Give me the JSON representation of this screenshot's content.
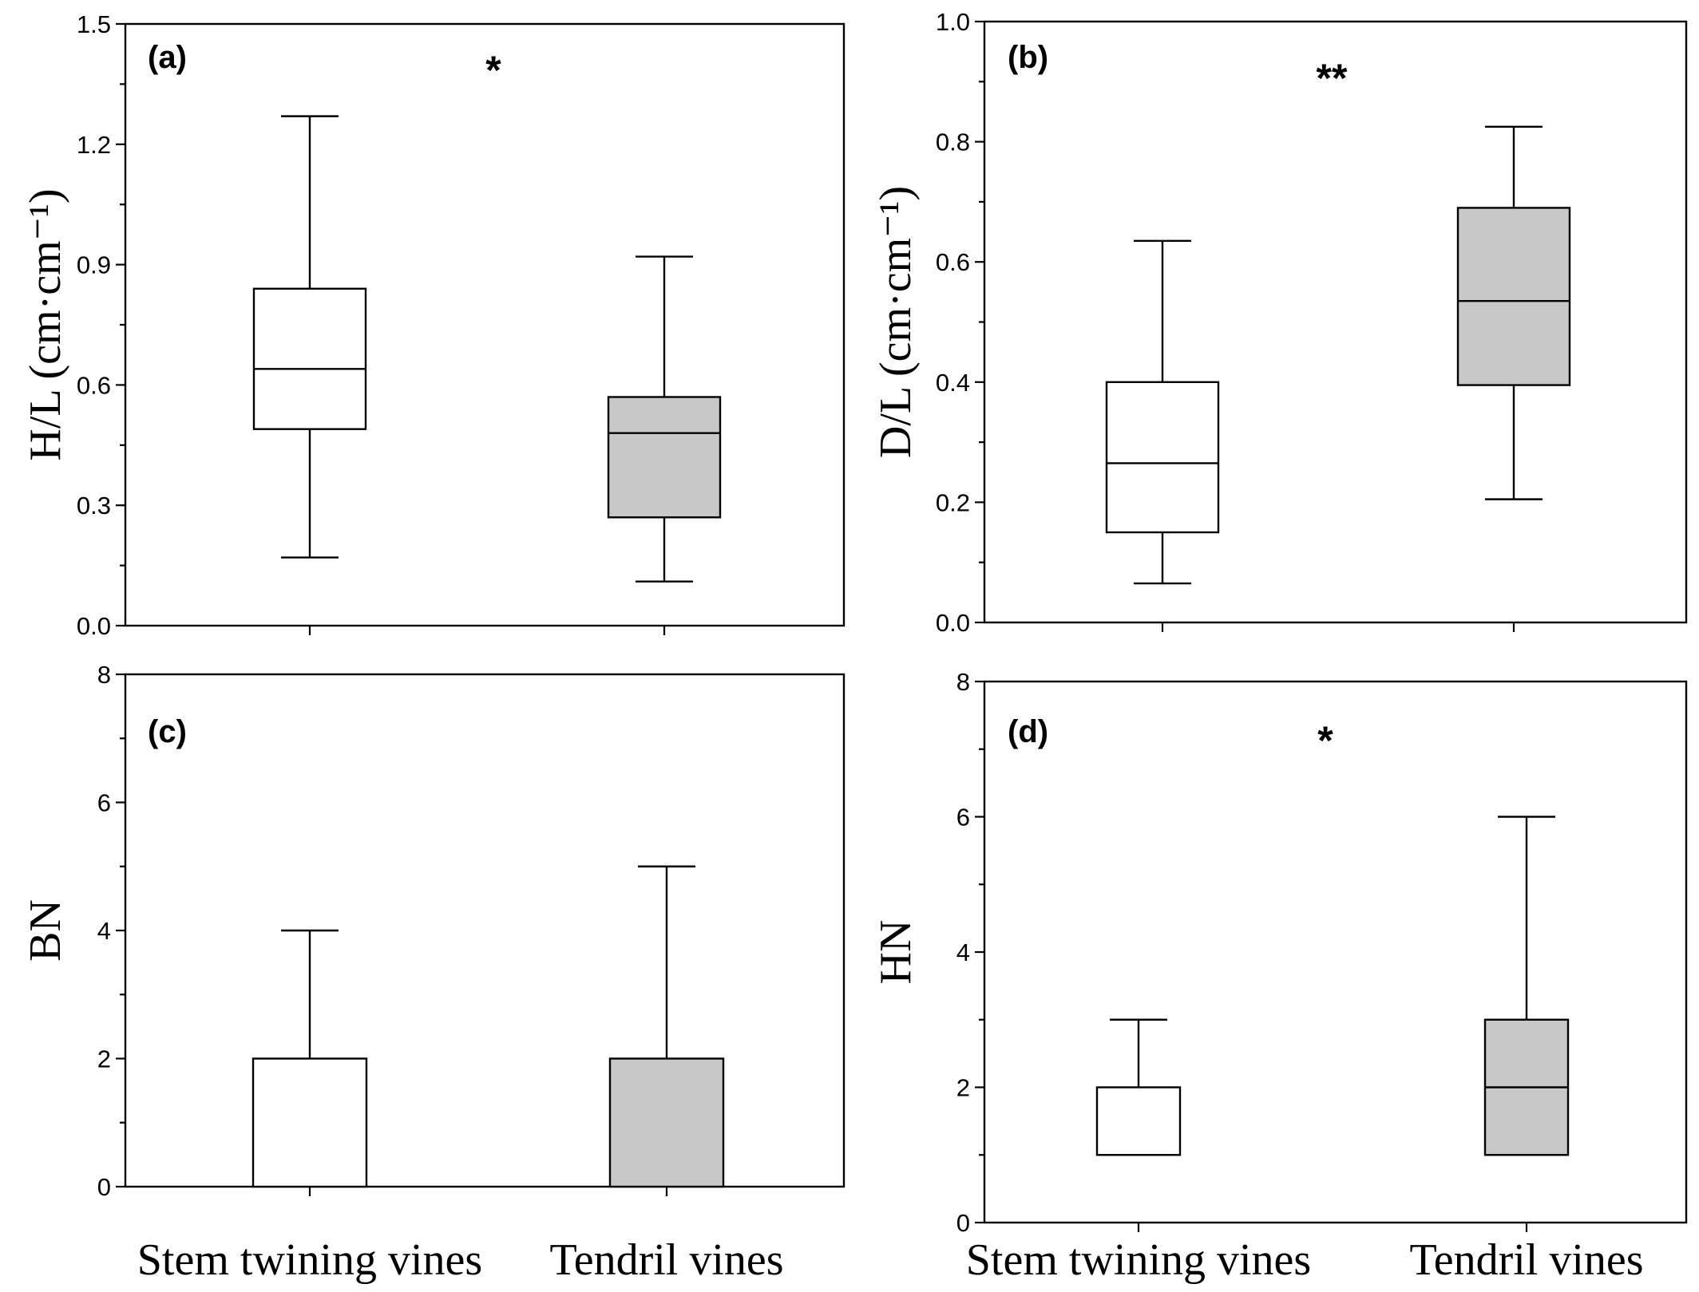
{
  "chart_data": [
    {
      "type": "box",
      "panel_label": "(a)",
      "significance": "*",
      "ylabel": "H/L (cm·cm⁻¹)",
      "ylim": [
        0,
        1.5
      ],
      "yticks": [
        0.0,
        0.3,
        0.6,
        0.9,
        1.2,
        1.5
      ],
      "ytick_labels": [
        "0.0",
        "0.3",
        "0.6",
        "0.9",
        "1.2",
        "1.5"
      ],
      "categories": [
        "Stem twining vines",
        "Tendril vines"
      ],
      "show_xlabels": false,
      "boxes": [
        {
          "category": "Stem twining vines",
          "min": 0.17,
          "q1": 0.49,
          "median": 0.64,
          "q3": 0.84,
          "max": 1.27,
          "fill": "#ffffff"
        },
        {
          "category": "Tendril vines",
          "min": 0.11,
          "q1": 0.27,
          "median": 0.48,
          "q3": 0.57,
          "max": 0.92,
          "fill": "#c8c8c8"
        }
      ]
    },
    {
      "type": "box",
      "panel_label": "(b)",
      "significance": "**",
      "ylabel": "D/L (cm·cm⁻¹)",
      "ylim": [
        0,
        1.0
      ],
      "yticks": [
        0.0,
        0.2,
        0.4,
        0.6,
        0.8,
        1.0
      ],
      "ytick_labels": [
        "0.0",
        "0.2",
        "0.4",
        "0.6",
        "0.8",
        "1.0"
      ],
      "categories": [
        "Stem twining vines",
        "Tendril vines"
      ],
      "show_xlabels": false,
      "boxes": [
        {
          "category": "Stem twining vines",
          "min": 0.065,
          "q1": 0.15,
          "median": 0.265,
          "q3": 0.4,
          "max": 0.635,
          "fill": "#ffffff"
        },
        {
          "category": "Tendril vines",
          "min": 0.205,
          "q1": 0.395,
          "median": 0.535,
          "q3": 0.69,
          "max": 0.825,
          "fill": "#c8c8c8"
        }
      ]
    },
    {
      "type": "box",
      "panel_label": "(c)",
      "significance": "",
      "ylabel": "BN",
      "ylim": [
        0,
        8
      ],
      "yticks": [
        0,
        2,
        4,
        6,
        8
      ],
      "ytick_labels": [
        "0",
        "2",
        "4",
        "6",
        "8"
      ],
      "categories": [
        "Stem twining vines",
        "Tendril vines"
      ],
      "show_xlabels": true,
      "boxes": [
        {
          "category": "Stem twining vines",
          "min": 0,
          "q1": 0,
          "median": 0,
          "q3": 2,
          "max": 4,
          "fill": "#ffffff"
        },
        {
          "category": "Tendril vines",
          "min": 0,
          "q1": 0,
          "median": 0,
          "q3": 2,
          "max": 5,
          "fill": "#c8c8c8"
        }
      ]
    },
    {
      "type": "box",
      "panel_label": "(d)",
      "significance": "*",
      "ylabel": "HN",
      "ylim": [
        0,
        8
      ],
      "yticks": [
        0,
        2,
        4,
        6,
        8
      ],
      "ytick_labels": [
        "0",
        "2",
        "4",
        "6",
        "8"
      ],
      "categories": [
        "Stem twining vines",
        "Tendril vines"
      ],
      "show_xlabels": true,
      "boxes": [
        {
          "category": "Stem twining vines",
          "min": 1,
          "q1": 1,
          "median": 1,
          "q3": 2,
          "max": 3,
          "fill": "#ffffff"
        },
        {
          "category": "Tendril vines",
          "min": 1,
          "q1": 1,
          "median": 2,
          "q3": 3,
          "max": 6,
          "fill": "#c8c8c8"
        }
      ]
    }
  ]
}
